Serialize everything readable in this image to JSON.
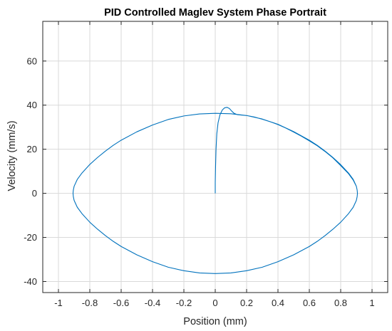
{
  "chart_data": {
    "type": "line",
    "title": "PID Controlled Maglev System Phase Portrait",
    "xlabel": "Position (mm)",
    "ylabel": "Velocity (mm/s)",
    "xlim": [
      -1.1,
      1.1
    ],
    "ylim": [
      -45,
      78
    ],
    "xticks": [
      -1,
      -0.8,
      -0.6,
      -0.4,
      -0.2,
      0,
      0.2,
      0.4,
      0.6,
      0.8,
      1
    ],
    "xtick_labels": [
      "-1",
      "-0.8",
      "-0.6",
      "-0.4",
      "-0.2",
      "0",
      "0.2",
      "0.4",
      "0.6",
      "0.8",
      "1"
    ],
    "yticks": [
      -40,
      -20,
      0,
      20,
      40,
      60
    ],
    "ytick_labels": [
      "-40",
      "-20",
      "0",
      "20",
      "40",
      "60"
    ],
    "grid": true,
    "legend": "none",
    "colors": {
      "line": "#0072BD",
      "axes": "#262626",
      "grid": "#d9d9d9",
      "background": "#ffffff"
    },
    "series": [
      {
        "values": [
          [
            0.0,
            0.0
          ],
          [
            0.0,
            5.0
          ],
          [
            0.002,
            12.0
          ],
          [
            0.005,
            20.0
          ],
          [
            0.01,
            27.0
          ],
          [
            0.018,
            32.0
          ],
          [
            0.03,
            35.6
          ],
          [
            0.045,
            37.8
          ],
          [
            0.06,
            38.8
          ],
          [
            0.075,
            39.0
          ],
          [
            0.09,
            38.5
          ],
          [
            0.105,
            37.3
          ],
          [
            0.12,
            36.3
          ],
          [
            0.14,
            35.7
          ],
          [
            0.17,
            35.5
          ],
          [
            0.2,
            35.3
          ],
          [
            0.25,
            34.6
          ],
          [
            0.3,
            33.6
          ],
          [
            0.35,
            32.5
          ],
          [
            0.4,
            31.2
          ],
          [
            0.45,
            29.6
          ],
          [
            0.5,
            27.8
          ],
          [
            0.55,
            25.9
          ],
          [
            0.6,
            23.8
          ],
          [
            0.65,
            21.6
          ],
          [
            0.7,
            19.0
          ],
          [
            0.75,
            16.1
          ],
          [
            0.8,
            12.6
          ],
          [
            0.85,
            8.9
          ],
          [
            0.88,
            6.0
          ],
          [
            0.9,
            3.2
          ],
          [
            0.905,
            1.5
          ],
          [
            0.907,
            0.0
          ],
          [
            0.905,
            -1.5
          ],
          [
            0.9,
            -3.2
          ],
          [
            0.88,
            -6.3
          ],
          [
            0.85,
            -9.2
          ],
          [
            0.8,
            -13.1
          ],
          [
            0.75,
            -16.3
          ],
          [
            0.7,
            -19.2
          ],
          [
            0.65,
            -21.8
          ],
          [
            0.6,
            -24.1
          ],
          [
            0.5,
            -27.9
          ],
          [
            0.4,
            -31.0
          ],
          [
            0.3,
            -33.5
          ],
          [
            0.2,
            -35.1
          ],
          [
            0.1,
            -36.1
          ],
          [
            0.0,
            -36.4
          ],
          [
            -0.1,
            -36.1
          ],
          [
            -0.2,
            -35.1
          ],
          [
            -0.3,
            -33.5
          ],
          [
            -0.4,
            -31.0
          ],
          [
            -0.5,
            -27.9
          ],
          [
            -0.6,
            -24.1
          ],
          [
            -0.65,
            -21.8
          ],
          [
            -0.7,
            -19.2
          ],
          [
            -0.75,
            -16.3
          ],
          [
            -0.8,
            -13.1
          ],
          [
            -0.85,
            -9.2
          ],
          [
            -0.88,
            -6.3
          ],
          [
            -0.9,
            -3.2
          ],
          [
            -0.905,
            -1.5
          ],
          [
            -0.907,
            0.0
          ],
          [
            -0.905,
            1.5
          ],
          [
            -0.9,
            3.2
          ],
          [
            -0.88,
            6.3
          ],
          [
            -0.85,
            9.2
          ],
          [
            -0.8,
            13.1
          ],
          [
            -0.75,
            16.3
          ],
          [
            -0.7,
            19.2
          ],
          [
            -0.65,
            21.8
          ],
          [
            -0.6,
            24.1
          ],
          [
            -0.5,
            27.9
          ],
          [
            -0.4,
            31.0
          ],
          [
            -0.3,
            33.5
          ],
          [
            -0.2,
            35.1
          ],
          [
            -0.1,
            36.0
          ],
          [
            0.0,
            36.3
          ],
          [
            0.1,
            36.1
          ],
          [
            0.2,
            35.3
          ],
          [
            0.3,
            33.7
          ],
          [
            0.4,
            31.3
          ],
          [
            0.5,
            28.0
          ],
          [
            0.6,
            24.1
          ],
          [
            0.65,
            21.8
          ],
          [
            0.7,
            19.2
          ],
          [
            0.75,
            16.3
          ],
          [
            0.8,
            13.0
          ],
          [
            0.85,
            9.2
          ],
          [
            0.88,
            6.3
          ],
          [
            0.9,
            3.2
          ],
          [
            0.905,
            1.5
          ],
          [
            0.907,
            0.0
          ]
        ]
      }
    ]
  }
}
